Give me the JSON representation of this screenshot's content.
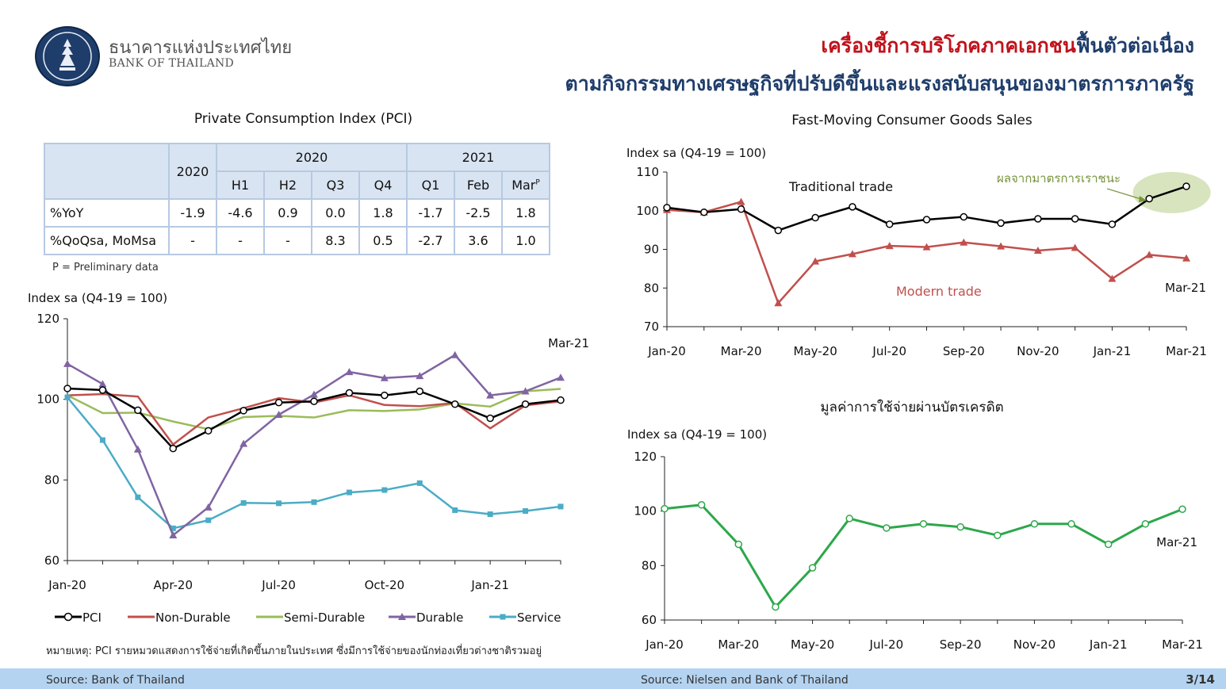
{
  "header": {
    "bank_thai": "ธนาคารแห่งประเทศไทย",
    "bank_en": "BANK OF THAILAND",
    "title_red": "เครื่องชี้การบริโภคภาคเอกชน",
    "title_blue": "ฟื้นตัวต่อเนื่อง",
    "subtitle": "ตามกิจกรรมทางเศรษฐกิจที่ปรับดีขึ้นและแรงสนับสนุนของมาตรการภาครัฐ"
  },
  "pci_table": {
    "title": "Private Consumption Index (PCI)",
    "col_2020": "2020",
    "group_2020": "2020",
    "group_2021": "2021",
    "sub_headers": [
      "H1",
      "H2",
      "Q3",
      "Q4",
      "Q1",
      "Feb",
      "Mar"
    ],
    "mar_superscript": "P",
    "rows": [
      {
        "label": "%YoY",
        "values": [
          "-1.9",
          "-4.6",
          "0.9",
          "0.0",
          "1.8",
          "-1.7",
          "-2.5",
          "1.8"
        ]
      },
      {
        "label": "%QoQsa, MoMsa",
        "values": [
          "-",
          "-",
          "-",
          "8.3",
          "0.5",
          "-2.7",
          "3.6",
          "1.0"
        ]
      }
    ],
    "note": "P = Preliminary data"
  },
  "colors": {
    "pci": "#000000",
    "non_durable": "#c0504d",
    "semi_durable": "#9bbb59",
    "durable": "#8064a2",
    "service": "#4bacc6",
    "traditional": "#000000",
    "modern": "#c0504d",
    "credit": "#2ca84a",
    "annotation": "#77933c"
  },
  "chart_data": [
    {
      "type": "line",
      "ylabel": "Index sa (Q4-19 = 100)",
      "ylim": [
        60,
        120
      ],
      "yticks": [
        "60",
        "80",
        "100",
        "120"
      ],
      "x": [
        "Jan-20",
        "Feb-20",
        "Mar-20",
        "Apr-20",
        "May-20",
        "Jun-20",
        "Jul-20",
        "Aug-20",
        "Sep-20",
        "Oct-20",
        "Nov-20",
        "Dec-20",
        "Jan-21",
        "Feb-21",
        "Mar-21"
      ],
      "xtick_labels": [
        "Jan-20",
        "Apr-20",
        "Jul-20",
        "Oct-20",
        "Jan-21"
      ],
      "annotation": "Mar-21",
      "series": [
        {
          "name": "PCI",
          "values": [
            102.7,
            102.3,
            97.3,
            87.8,
            92.2,
            97.2,
            99.2,
            99.5,
            101.6,
            101.0,
            102.0,
            98.8,
            95.3,
            98.8,
            99.8
          ]
        },
        {
          "name": "Non-Durable",
          "values": [
            101.0,
            101.3,
            100.7,
            88.8,
            95.5,
            97.8,
            100.3,
            99.2,
            101.0,
            98.6,
            98.3,
            99.1,
            92.8,
            98.5,
            99.5
          ]
        },
        {
          "name": "Semi-Durable",
          "values": [
            101.0,
            96.6,
            96.7,
            94.5,
            92.6,
            95.6,
            95.9,
            95.5,
            97.3,
            97.1,
            97.5,
            99.0,
            98.2,
            102.0,
            102.6
          ]
        },
        {
          "name": "Durable",
          "values": [
            108.8,
            103.8,
            87.6,
            66.3,
            73.2,
            89.0,
            96.2,
            101.2,
            106.8,
            105.3,
            105.8,
            111.0,
            101.0,
            102.0,
            105.4
          ]
        },
        {
          "name": "Service",
          "values": [
            100.5,
            89.9,
            75.7,
            68.0,
            70.0,
            74.3,
            74.2,
            74.5,
            76.9,
            77.5,
            79.2,
            72.5,
            71.5,
            72.3,
            73.4
          ]
        }
      ],
      "legend_position": "bottom"
    },
    {
      "type": "line",
      "title": "Fast-Moving Consumer Goods Sales",
      "ylabel": "Index sa (Q4-19 = 100)",
      "ylim": [
        70,
        110
      ],
      "yticks": [
        "70",
        "80",
        "90",
        "100",
        "110"
      ],
      "x": [
        "Jan-20",
        "Feb-20",
        "Mar-20",
        "Apr-20",
        "May-20",
        "Jun-20",
        "Jul-20",
        "Aug-20",
        "Sep-20",
        "Oct-20",
        "Nov-20",
        "Dec-20",
        "Jan-21",
        "Feb-21",
        "Mar-21"
      ],
      "xtick_labels": [
        "Jan-20",
        "Mar-20",
        "May-20",
        "Jul-20",
        "Sep-20",
        "Nov-20",
        "Jan-21",
        "Mar-21"
      ],
      "series": [
        {
          "name": "Traditional trade",
          "values": [
            100.8,
            99.6,
            100.4,
            94.9,
            98.2,
            101.0,
            96.5,
            97.7,
            98.4,
            96.8,
            97.9,
            97.9,
            96.5,
            103.1,
            106.3
          ]
        },
        {
          "name": "Modern trade",
          "values": [
            100.2,
            99.6,
            102.3,
            76.1,
            86.9,
            88.8,
            90.9,
            90.6,
            91.8,
            90.8,
            89.7,
            90.4,
            82.4,
            88.6,
            87.7
          ]
        }
      ],
      "annotation_thai": "ผลจากมาตรการเราชนะ",
      "annotation_date": "Mar-21"
    },
    {
      "type": "line",
      "title": "มูลค่าการใช้จ่ายผ่านบัตรเครดิต",
      "ylabel": "Index sa (Q4-19 = 100)",
      "ylim": [
        60,
        120
      ],
      "yticks": [
        "60",
        "80",
        "100",
        "120"
      ],
      "x": [
        "Jan-20",
        "Feb-20",
        "Mar-20",
        "Apr-20",
        "May-20",
        "Jun-20",
        "Jul-20",
        "Aug-20",
        "Sep-20",
        "Oct-20",
        "Nov-20",
        "Dec-20",
        "Jan-21",
        "Feb-21",
        "Mar-21"
      ],
      "xtick_labels": [
        "Jan-20",
        "Mar-20",
        "May-20",
        "Jul-20",
        "Sep-20",
        "Nov-20",
        "Jan-21",
        "Mar-21"
      ],
      "series": [
        {
          "values": [
            100.9,
            102.3,
            87.8,
            64.8,
            79.2,
            97.3,
            93.8,
            95.3,
            94.2,
            91.1,
            95.3,
            95.3,
            87.8,
            95.3,
            100.7
          ]
        }
      ],
      "annotation": "Mar-21"
    }
  ],
  "footer": {
    "note": "หมายเหตุ: PCI รายหมวดแสดงการใช้จ่ายที่เกิดขึ้นภายในประเทศ ซึ่งมีการใช้จ่ายของนักท่องเที่ยวต่างชาติรวมอยู่",
    "source_left": "Source: Bank of Thailand",
    "source_right": "Source:  Nielsen and Bank of Thailand",
    "page": "3/14"
  }
}
